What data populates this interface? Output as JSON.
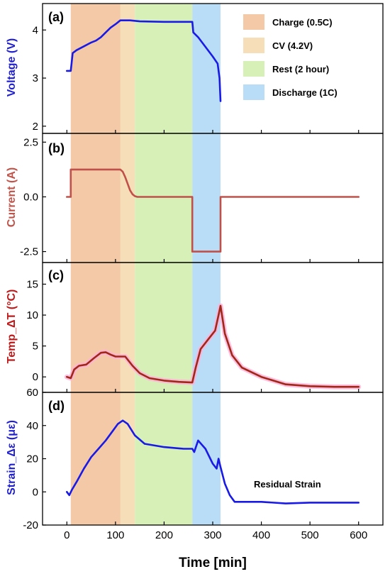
{
  "chart_data": {
    "type": "line",
    "xlabel": "Time [min]",
    "xlim": [
      -50,
      650
    ],
    "x_ticks": [
      "0",
      "100",
      "200",
      "300",
      "400",
      "500",
      "600"
    ],
    "phases": [
      {
        "name": "Charge (0.5C)",
        "start": 8,
        "end": 135,
        "color": "#f4c9a8"
      },
      {
        "name": "CV (4.2V)",
        "start": 110,
        "end": 140,
        "color": "#f6dfb8"
      },
      {
        "name": "Rest (2 hour)",
        "start": 140,
        "end": 258,
        "color": "#d6f0b8"
      },
      {
        "name": "Discharge (1C)",
        "start": 258,
        "end": 316,
        "color": "#b9ddf7"
      }
    ],
    "legend_position": "top-right",
    "panels": [
      {
        "label": "(a)",
        "ylabel": "Voltage (V)",
        "ylabel_color": "#2020d0",
        "line_color": "#1a1ae6",
        "ylim": [
          1.85,
          4.55
        ],
        "y_ticks": [
          2,
          3,
          4
        ],
        "y_tick_labels": [
          "2",
          "3",
          "4"
        ],
        "x": [
          0,
          8,
          12,
          20,
          35,
          50,
          60,
          70,
          80,
          90,
          100,
          110,
          115,
          120,
          130,
          150,
          200,
          240,
          258,
          260,
          270,
          285,
          300,
          310,
          314,
          316
        ],
        "y": [
          3.15,
          3.15,
          3.52,
          3.58,
          3.66,
          3.74,
          3.78,
          3.85,
          3.95,
          4.05,
          4.12,
          4.2,
          4.2,
          4.2,
          4.2,
          4.18,
          4.17,
          4.17,
          4.17,
          3.95,
          3.85,
          3.65,
          3.45,
          3.3,
          3.0,
          2.52
        ]
      },
      {
        "label": "(b)",
        "ylabel": "Current (A)",
        "ylabel_color": "#c0544a",
        "line_color": "#c0504a",
        "ylim": [
          -3.0,
          2.9
        ],
        "y_ticks": [
          -2.5,
          0,
          2.5
        ],
        "y_tick_labels": [
          "-2.5",
          "0.0",
          "2.5"
        ],
        "x": [
          0,
          8,
          8,
          110,
          115,
          120,
          125,
          130,
          135,
          140,
          145,
          258,
          258,
          316,
          316,
          600
        ],
        "y": [
          0,
          0,
          1.25,
          1.25,
          1.15,
          0.9,
          0.6,
          0.3,
          0.12,
          0.03,
          0,
          0,
          -2.5,
          -2.5,
          0,
          0
        ]
      },
      {
        "label": "(c)",
        "ylabel": "Temp_ΔT (°C)",
        "ylabel_color": "#c01818",
        "line_color": "#a02818",
        "glow_color": "#ffb0d8",
        "ylim": [
          -2.5,
          18.5
        ],
        "y_ticks": [
          0,
          5,
          10,
          15
        ],
        "y_tick_labels": [
          "0",
          "5",
          "10",
          "15"
        ],
        "x": [
          0,
          8,
          15,
          25,
          40,
          55,
          70,
          80,
          90,
          100,
          110,
          120,
          135,
          150,
          170,
          200,
          230,
          258,
          265,
          275,
          290,
          305,
          312,
          316,
          325,
          340,
          360,
          400,
          450,
          500,
          550,
          600
        ],
        "y": [
          0,
          -0.2,
          1.2,
          1.8,
          2.0,
          3.0,
          3.9,
          4.0,
          3.6,
          3.3,
          3.3,
          3.3,
          1.8,
          0.6,
          -0.2,
          -0.6,
          -0.8,
          -0.9,
          1.5,
          4.5,
          6.0,
          7.5,
          10.0,
          11.5,
          7.0,
          3.5,
          1.5,
          0.0,
          -1.2,
          -1.5,
          -1.6,
          -1.6
        ]
      },
      {
        "label": "(d)",
        "ylabel": "Strain_Δε (με)",
        "ylabel_color": "#2020d0",
        "line_color": "#1a1ae6",
        "ylim": [
          -20,
          60
        ],
        "y_ticks": [
          -20,
          0,
          20,
          40,
          60
        ],
        "y_tick_labels": [
          "-20",
          "0",
          "20",
          "40",
          "60"
        ],
        "x": [
          0,
          5,
          10,
          20,
          35,
          50,
          65,
          80,
          95,
          105,
          115,
          125,
          140,
          160,
          200,
          240,
          258,
          262,
          270,
          285,
          300,
          308,
          312,
          316,
          325,
          335,
          345,
          360,
          400,
          450,
          500,
          550,
          600
        ],
        "y": [
          0,
          -2,
          1,
          6,
          14,
          21,
          26,
          31,
          37,
          41,
          43,
          41,
          34,
          29,
          27,
          26,
          26,
          24,
          31,
          26,
          17,
          14,
          20,
          15,
          5,
          -2,
          -6,
          -6,
          -6,
          -7,
          -6.5,
          -6.5,
          -6.5
        ],
        "annotation": "Residual Strain"
      }
    ]
  }
}
